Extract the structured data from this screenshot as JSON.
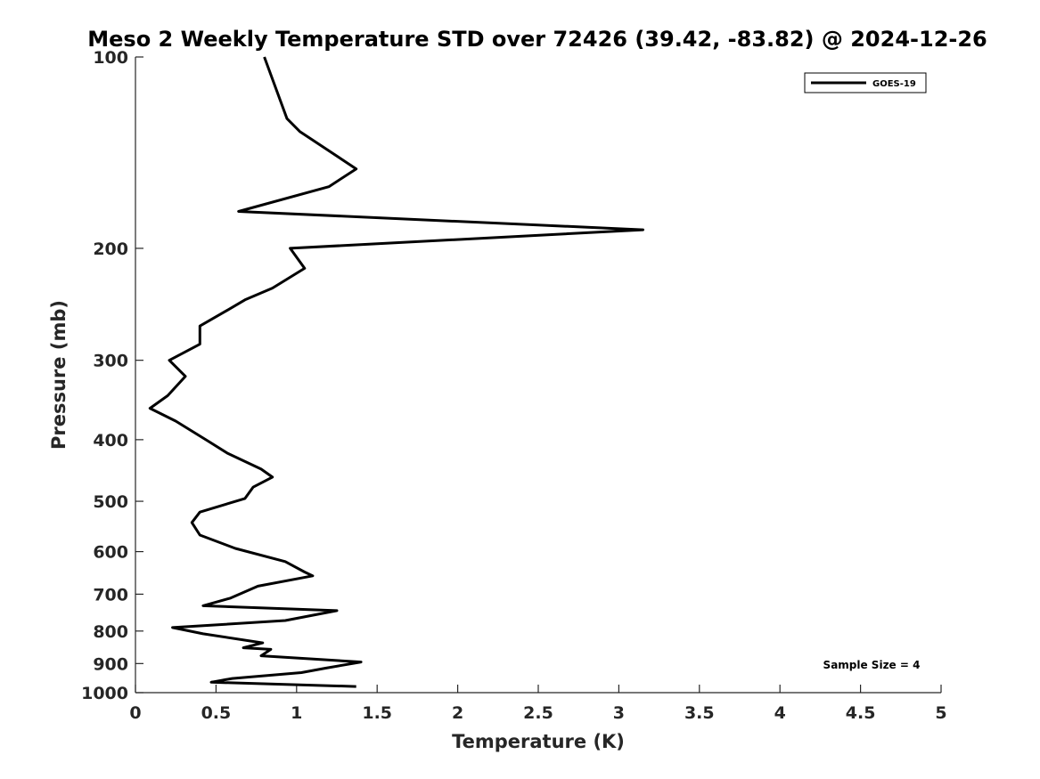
{
  "chart_data": {
    "type": "line",
    "title": "Meso 2 Weekly Temperature STD over 72426 (39.42, -83.82) @ 2024-12-26",
    "xlabel": "Temperature (K)",
    "ylabel": "Pressure (mb)",
    "xlim": [
      0,
      5
    ],
    "ylim": [
      100,
      1000
    ],
    "y_scale": "log",
    "y_reversed": true,
    "x_ticks": [
      0,
      0.5,
      1,
      1.5,
      2,
      2.5,
      3,
      3.5,
      4,
      4.5,
      5
    ],
    "x_tick_labels": [
      "0",
      "0.5",
      "1",
      "1.5",
      "2",
      "2.5",
      "3",
      "3.5",
      "4",
      "4.5",
      "5"
    ],
    "y_ticks": [
      100,
      200,
      300,
      400,
      500,
      600,
      700,
      800,
      900,
      1000
    ],
    "y_tick_labels": [
      "100",
      "200",
      "300",
      "400",
      "500",
      "600",
      "700",
      "800",
      "900",
      "1000"
    ],
    "grid": false,
    "legend_position": "top-right",
    "series": [
      {
        "name": "GOES-19",
        "color": "#000000",
        "points": [
          [
            0.8,
            100
          ],
          [
            0.94,
            125
          ],
          [
            1.02,
            131
          ],
          [
            1.37,
            150
          ],
          [
            1.2,
            160
          ],
          [
            0.64,
            175
          ],
          [
            3.15,
            187
          ],
          [
            0.96,
            200
          ],
          [
            1.05,
            215
          ],
          [
            0.85,
            231
          ],
          [
            0.68,
            241
          ],
          [
            0.55,
            252
          ],
          [
            0.4,
            265
          ],
          [
            0.4,
            283
          ],
          [
            0.21,
            300
          ],
          [
            0.31,
            318
          ],
          [
            0.2,
            341
          ],
          [
            0.09,
            357
          ],
          [
            0.25,
            374
          ],
          [
            0.45,
            402
          ],
          [
            0.57,
            420
          ],
          [
            0.78,
            445
          ],
          [
            0.85,
            458
          ],
          [
            0.73,
            475
          ],
          [
            0.68,
            495
          ],
          [
            0.4,
            520
          ],
          [
            0.35,
            540
          ],
          [
            0.4,
            565
          ],
          [
            0.62,
            593
          ],
          [
            0.93,
            622
          ],
          [
            1.05,
            646
          ],
          [
            1.1,
            655
          ],
          [
            0.76,
            680
          ],
          [
            0.59,
            710
          ],
          [
            0.42,
            730
          ],
          [
            1.25,
            743
          ],
          [
            0.93,
            770
          ],
          [
            0.23,
            790
          ],
          [
            0.42,
            808
          ],
          [
            0.79,
            835
          ],
          [
            0.67,
            850
          ],
          [
            0.84,
            855
          ],
          [
            0.78,
            875
          ],
          [
            1.4,
            895
          ],
          [
            1.18,
            915
          ],
          [
            1.03,
            930
          ],
          [
            0.6,
            950
          ],
          [
            0.47,
            963
          ],
          [
            1.37,
            978
          ]
        ]
      }
    ],
    "annotations": [
      {
        "text": "Sample Size = 4",
        "position": "bottom-right"
      }
    ]
  }
}
